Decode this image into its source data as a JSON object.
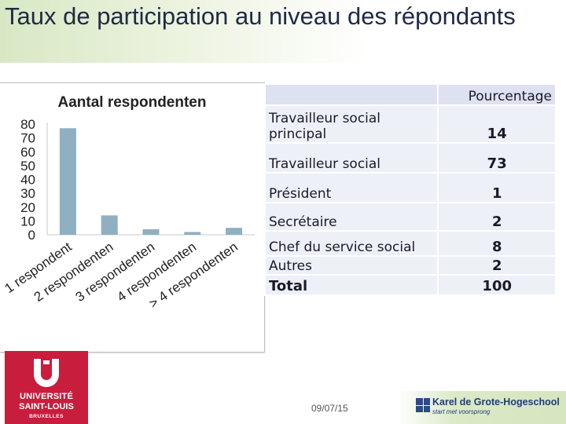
{
  "slide": {
    "title": "Taux de participation au niveau des répondants",
    "date": "09/07/15"
  },
  "chart_data": {
    "type": "bar",
    "title": "Aantal respondenten",
    "categories": [
      "1 respondent",
      "2 respondenten",
      "3 respondenten",
      "4 respondenten",
      "> 4 respondenten"
    ],
    "values": [
      77,
      14,
      4,
      2,
      5
    ],
    "ylim": [
      0,
      80
    ],
    "yticks": [
      0,
      10,
      20,
      30,
      40,
      50,
      60,
      70,
      80
    ],
    "xlabel": "",
    "ylabel": "",
    "grid": false,
    "bar_color": "#8fb0c0"
  },
  "table": {
    "header": "Pourcentage",
    "rows": [
      {
        "label": "Travailleur social principal",
        "value": "14"
      },
      {
        "label": "Travailleur social",
        "value": "73"
      },
      {
        "label": "Président",
        "value": "1"
      },
      {
        "label": "Secrétaire",
        "value": "2"
      },
      {
        "label": "Chef du service social",
        "value": "8"
      },
      {
        "label": "Autres",
        "value": "2"
      },
      {
        "label": "Total",
        "value": "100"
      }
    ]
  },
  "logos": {
    "university": {
      "line1": "UNIVERSITÉ",
      "line2": "SAINT-LOUIS",
      "line3": "BRUXELLES",
      "color": "#c81d3c"
    },
    "school": {
      "name": "Karel de Grote-Hogeschool",
      "tagline": "start met voorsprong",
      "color": "#1f3b7a"
    }
  }
}
